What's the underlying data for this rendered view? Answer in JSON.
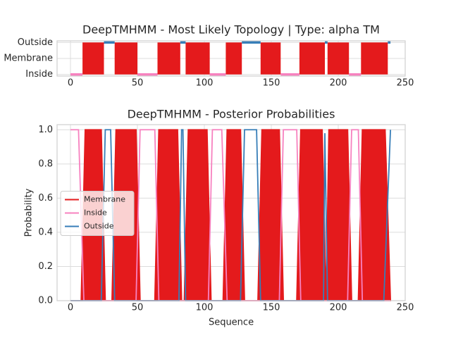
{
  "chart_data": [
    {
      "type": "segments",
      "title": "DeepTMHMM - Most Likely Topology | Type: alpha TM",
      "xlim": [
        -10,
        250
      ],
      "xticks": [
        0,
        50,
        100,
        150,
        200,
        250
      ],
      "ylim": [
        -0.1,
        2.1
      ],
      "yticks": [
        {
          "value": 0,
          "label": "Inside"
        },
        {
          "value": 1,
          "label": "Membrane"
        },
        {
          "value": 2,
          "label": "Outside"
        }
      ],
      "grid": true,
      "series": [
        {
          "name": "Membrane",
          "color": "#e41a1c",
          "segments": [
            [
              9,
              25
            ],
            [
              33,
              50
            ],
            [
              65,
              82
            ],
            [
              86,
              104
            ],
            [
              116,
              128
            ],
            [
              142,
              157
            ],
            [
              171,
              190
            ],
            [
              192,
              208
            ],
            [
              217,
              237
            ]
          ]
        },
        {
          "name": "Inside",
          "color": "#f781bf",
          "segments": [
            [
              0,
              9
            ],
            [
              50,
              65
            ],
            [
              104,
              116
            ],
            [
              157,
              171
            ],
            [
              208,
              217
            ]
          ]
        },
        {
          "name": "Outside",
          "color": "#377eb8",
          "segments": [
            [
              25,
              33
            ],
            [
              82,
              86
            ],
            [
              128,
              142
            ],
            [
              190,
              192
            ],
            [
              237,
              239
            ]
          ]
        }
      ]
    },
    {
      "type": "line",
      "title": "DeepTMHMM - Posterior Probabilities",
      "xlabel": "Sequence",
      "ylabel": "Probability",
      "xlim": [
        -10,
        250
      ],
      "xticks": [
        0,
        50,
        100,
        150,
        200,
        250
      ],
      "ylim": [
        0,
        1.03
      ],
      "yticks": [
        {
          "value": 0,
          "label": "0.0"
        },
        {
          "value": 0.2,
          "label": "0.2"
        },
        {
          "value": 0.4,
          "label": "0.4"
        },
        {
          "value": 0.6,
          "label": "0.6"
        },
        {
          "value": 0.8,
          "label": "0.8"
        },
        {
          "value": 1,
          "label": "1.0"
        }
      ],
      "grid": true,
      "legend": "center left",
      "series": [
        {
          "name": "Membrane",
          "color": "#e41a1c",
          "fill": true,
          "x": [
            0,
            8,
            11,
            23,
            26,
            31,
            34,
            49,
            52,
            63,
            66,
            80,
            83,
            85,
            88,
            102,
            105,
            114,
            117,
            127,
            130,
            140,
            143,
            156,
            159,
            169,
            172,
            188,
            191,
            193,
            207,
            210,
            215,
            218,
            235,
            239
          ],
          "values": [
            0,
            0,
            1,
            1,
            0,
            0,
            1,
            1,
            0,
            0,
            1,
            1,
            0,
            0,
            1,
            1,
            0,
            0,
            1,
            1,
            0,
            0,
            1,
            1,
            0,
            0,
            1,
            1,
            0,
            1,
            1,
            0,
            0,
            1,
            1,
            0
          ]
        },
        {
          "name": "Inside",
          "color": "#f781bf",
          "x": [
            0,
            6,
            10,
            49,
            52,
            63,
            66,
            103,
            106,
            113,
            117,
            156,
            159,
            169,
            172,
            207,
            210,
            215,
            218,
            239
          ],
          "values": [
            1,
            1,
            0,
            0,
            1,
            1,
            0,
            0,
            1,
            1,
            0,
            0,
            1,
            1,
            0,
            0,
            1,
            1,
            0,
            0
          ]
        },
        {
          "name": "Outside",
          "color": "#377eb8",
          "x": [
            0,
            23,
            26,
            30,
            33,
            81,
            83,
            84,
            86,
            127,
            130,
            139,
            142,
            189,
            190,
            192,
            234,
            239
          ],
          "values": [
            0,
            0,
            1,
            1,
            0,
            0,
            1,
            1,
            0,
            0,
            1,
            1,
            0,
            0,
            0.98,
            0,
            0,
            1
          ]
        }
      ]
    }
  ]
}
